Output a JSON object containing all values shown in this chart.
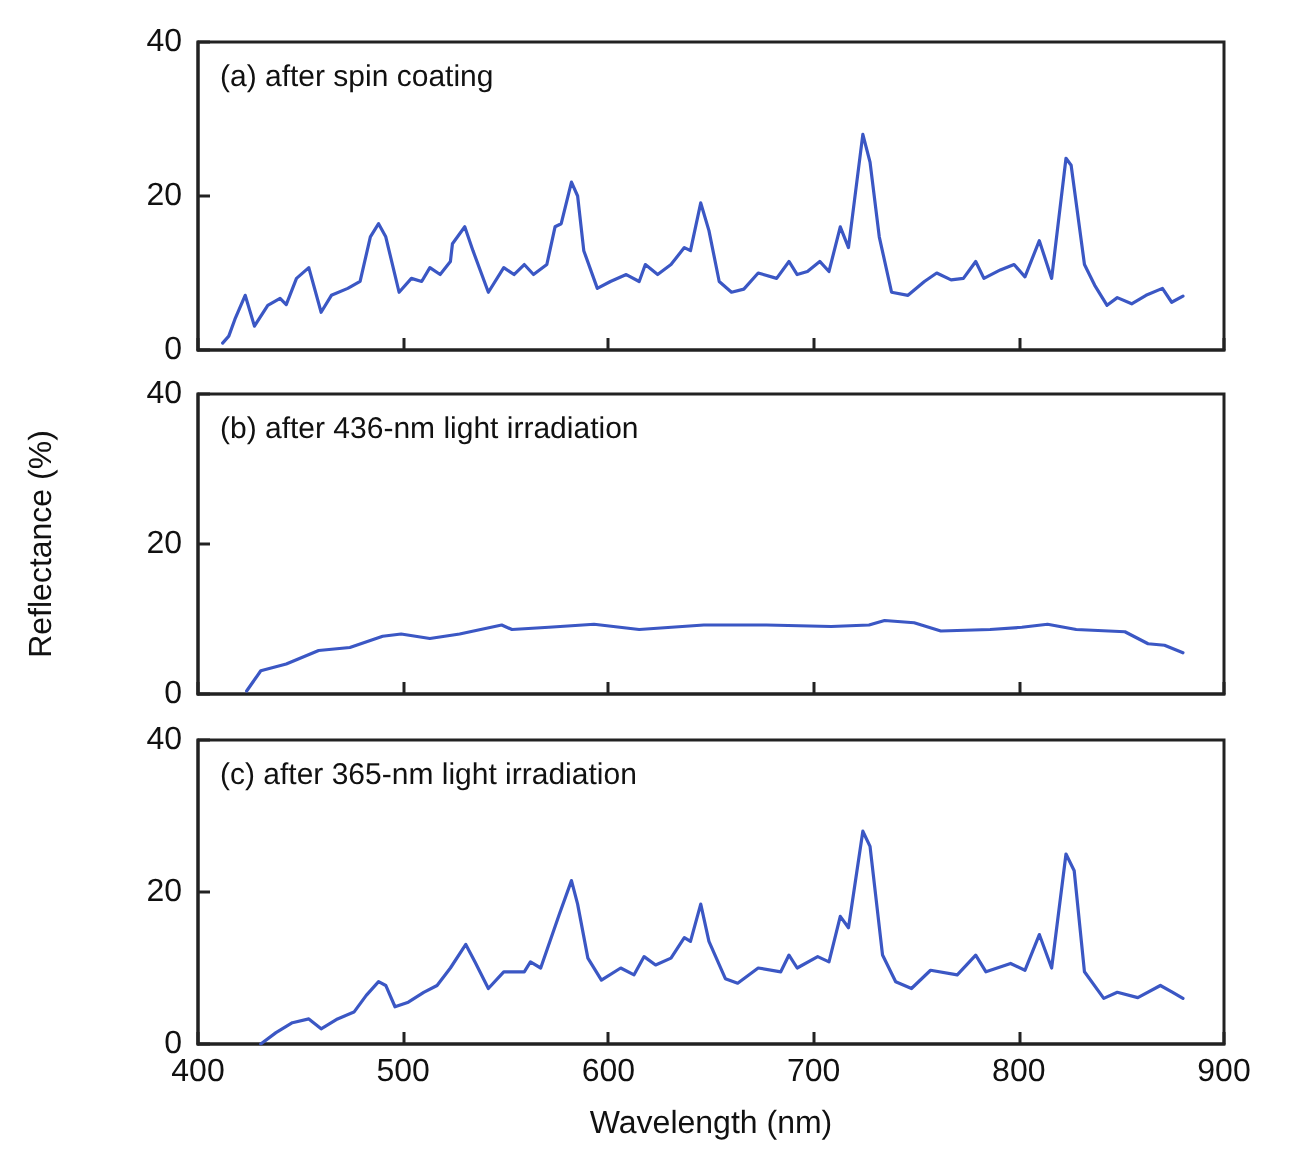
{
  "chart_data": [
    {
      "type": "line",
      "title": "(a) after spin coating",
      "color": "#3b57c4",
      "marker": "none",
      "grid": false,
      "tick_labels": "y",
      "xlim": [
        400,
        900
      ],
      "xticks": [
        400,
        500,
        600,
        700,
        800,
        900
      ],
      "ylim": [
        0,
        40
      ],
      "yticks": [
        0,
        20,
        40
      ],
      "x": [
        412,
        415,
        418,
        423,
        427.5,
        434,
        440,
        443,
        448,
        454,
        460,
        465,
        473,
        479,
        484,
        488,
        491.5,
        498,
        504,
        509,
        513,
        518,
        523,
        524,
        530,
        534,
        541.5,
        549,
        554,
        559,
        563.5,
        570,
        574,
        577,
        582,
        585,
        588,
        594.6,
        601,
        608.7,
        615,
        618,
        624,
        630.5,
        637,
        640,
        645,
        649,
        654,
        660,
        666,
        673,
        682,
        688,
        692,
        697,
        703,
        707.5,
        713,
        717,
        724,
        727.5,
        732,
        738,
        746,
        754,
        760,
        767,
        773,
        779,
        783,
        791,
        797.7,
        803,
        810,
        816,
        823,
        825.5,
        832,
        837,
        843,
        848,
        855,
        862,
        870,
        874.5,
        880
      ],
      "values": [
        0.9,
        1.8,
        4,
        7.1,
        3.1,
        5.8,
        6.7,
        5.9,
        9.3,
        10.7,
        4.9,
        7.1,
        8,
        8.9,
        14.7,
        16.4,
        14.7,
        7.5,
        9.3,
        8.9,
        10.7,
        9.8,
        11.5,
        13.8,
        16,
        12.9,
        7.5,
        10.7,
        9.8,
        11.1,
        9.8,
        11.1,
        16,
        16.4,
        21.8,
        20,
        12.9,
        8,
        8.9,
        9.8,
        8.9,
        11.1,
        9.8,
        11.1,
        13.3,
        12.9,
        19.1,
        15.5,
        8.9,
        7.5,
        7.9,
        10,
        9.3,
        11.5,
        9.8,
        10.2,
        11.5,
        10.2,
        16,
        13.3,
        28,
        24.4,
        14.7,
        7.5,
        7.1,
        8.9,
        10,
        9.1,
        9.3,
        11.5,
        9.3,
        10.4,
        11.1,
        9.5,
        14.2,
        9.3,
        24.9,
        24,
        11.1,
        8.4,
        5.8,
        6.8,
        6,
        7.1,
        8,
        6.2,
        7
      ]
    },
    {
      "type": "line",
      "title": "(b) after 436-nm light irradiation",
      "ylabel": "Reflectance (%)",
      "color": "#3b57c4",
      "marker": "none",
      "grid": false,
      "tick_labels": "y",
      "xlim": [
        400,
        900
      ],
      "xticks": [
        400,
        500,
        600,
        700,
        800,
        900
      ],
      "ylim": [
        0,
        40
      ],
      "yticks": [
        0,
        20,
        40
      ],
      "x": [
        423.7,
        430.6,
        443,
        458.8,
        474,
        490,
        499,
        513,
        527.5,
        548,
        553,
        571,
        593,
        615,
        646.5,
        677,
        708.6,
        727,
        734.6,
        749,
        762,
        786,
        801.5,
        814,
        828,
        851.7,
        863,
        871,
        880
      ],
      "values": [
        0.4,
        3.1,
        4,
        5.8,
        6.2,
        7.7,
        8,
        7.4,
        8,
        9.2,
        8.6,
        8.9,
        9.3,
        8.6,
        9.2,
        9.2,
        9,
        9.2,
        9.8,
        9.5,
        8.4,
        8.6,
        8.9,
        9.3,
        8.6,
        8.3,
        6.7,
        6.5,
        5.5
      ]
    },
    {
      "type": "line",
      "title": "(c) after 365-nm light irradiation",
      "xlabel": "Wavelength (nm)",
      "color": "#3b57c4",
      "marker": "none",
      "grid": false,
      "xlim": [
        400,
        900
      ],
      "xticks": [
        400,
        500,
        600,
        700,
        800,
        900
      ],
      "ylim": [
        0,
        40
      ],
      "yticks": [
        0,
        20,
        40
      ],
      "x": [
        430.6,
        438,
        446,
        454,
        460,
        468,
        476,
        482,
        488,
        491.5,
        496,
        502.5,
        510,
        516.5,
        523,
        530.5,
        535,
        541.5,
        549,
        559,
        562,
        567,
        576,
        582,
        585,
        590,
        596.6,
        606,
        612.5,
        617.4,
        623,
        630.5,
        637,
        640,
        645,
        649,
        657,
        663,
        673,
        684,
        688,
        692,
        702,
        707.5,
        713,
        717,
        724,
        727.5,
        733.6,
        740,
        747.7,
        757,
        770,
        779,
        784,
        796,
        803,
        810,
        816,
        823,
        827,
        832,
        841.4,
        848,
        858,
        869,
        875,
        880
      ],
      "values": [
        0,
        1.5,
        2.8,
        3.3,
        2,
        3.3,
        4.2,
        6.4,
        8.2,
        7.7,
        4.9,
        5.5,
        6.8,
        7.7,
        10,
        13.1,
        10.8,
        7.3,
        9.5,
        9.5,
        10.8,
        10,
        17,
        21.5,
        18.4,
        11.3,
        8.4,
        10,
        9.1,
        11.5,
        10.4,
        11.3,
        14,
        13.5,
        18.4,
        13.5,
        8.6,
        8,
        10,
        9.5,
        11.7,
        10,
        11.5,
        10.8,
        16.8,
        15.3,
        28,
        26,
        11.7,
        8.2,
        7.3,
        9.7,
        9.1,
        11.7,
        9.5,
        10.6,
        9.7,
        14.4,
        10,
        25,
        22.8,
        9.5,
        6,
        6.8,
        6.1,
        7.7,
        6.8,
        6
      ]
    }
  ]
}
